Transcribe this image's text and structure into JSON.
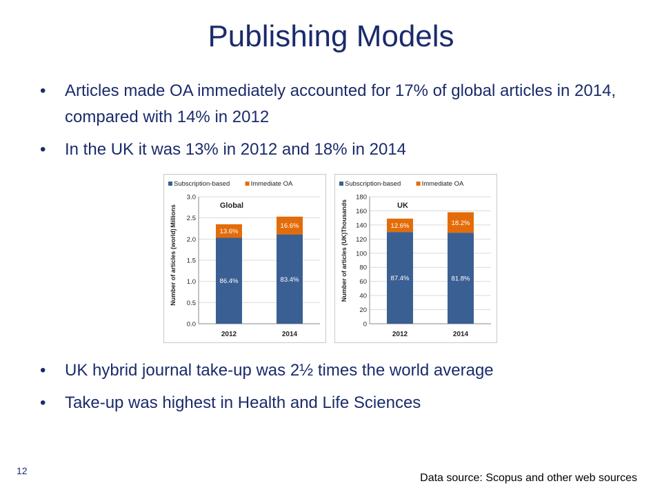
{
  "slide": {
    "title": "Publishing  Models",
    "bullets_top": [
      "Articles made OA immediately accounted for 17% of global articles in 2014, compared with 14% in 2012",
      "In the UK it was 13% in 2012 and 18% in 2014"
    ],
    "bullets_bottom": [
      "UK hybrid journal take-up was 2½ times the world average",
      "Take-up was highest in Health and Life Sciences"
    ],
    "bullet_glyph": "•",
    "footer": "Data source: Scopus and other web sources",
    "page_number": "12"
  },
  "colors": {
    "title": "#1a2b6b",
    "subscription": "#3a5f93",
    "oa": "#e36c0a"
  },
  "chart_data": [
    {
      "type": "bar",
      "stacked": true,
      "title": "Global",
      "ylabel": "Number of articles (world)",
      "unit_label": "Millions",
      "categories": [
        "2012",
        "2014"
      ],
      "ylim": [
        0,
        3.0
      ],
      "yticks": [
        "0.0",
        "0.5",
        "1.0",
        "1.5",
        "2.0",
        "2.5",
        "3.0"
      ],
      "series": [
        {
          "name": "Subscription-based",
          "values": [
            2.03,
            2.11
          ],
          "labels": [
            "86.4%",
            "83.4%"
          ]
        },
        {
          "name": "Immediate OA",
          "values": [
            0.32,
            0.42
          ],
          "labels": [
            "13.6%",
            "16.6%"
          ]
        }
      ],
      "legend": "top"
    },
    {
      "type": "bar",
      "stacked": true,
      "title": "UK",
      "ylabel": "Number of articles (UK)",
      "unit_label": "Thousands",
      "categories": [
        "2012",
        "2014"
      ],
      "ylim": [
        0,
        180
      ],
      "yticks": [
        "0",
        "20",
        "40",
        "60",
        "80",
        "100",
        "120",
        "140",
        "160",
        "180"
      ],
      "series": [
        {
          "name": "Subscription-based",
          "values": [
            130,
            129
          ],
          "labels": [
            "87.4%",
            "81.8%"
          ]
        },
        {
          "name": "Immediate OA",
          "values": [
            19,
            29
          ],
          "labels": [
            "12.6%",
            "18.2%"
          ]
        }
      ],
      "legend": "top"
    }
  ]
}
